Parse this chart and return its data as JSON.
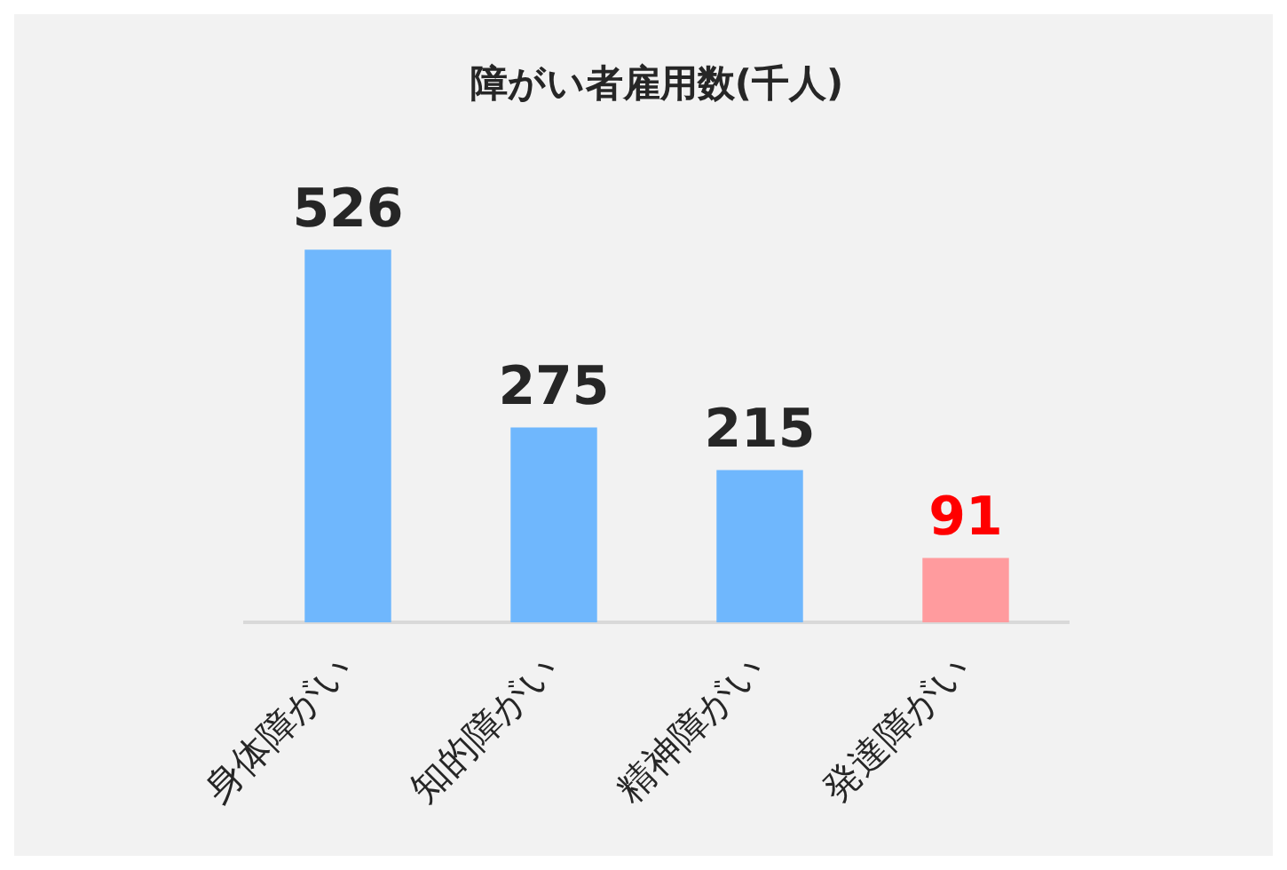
{
  "chart_data": {
    "type": "bar",
    "title": "障がい者雇用数(千人)",
    "categories": [
      "身体障がい",
      "知的障がい",
      "精神障がい",
      "発達障がい"
    ],
    "values": [
      526,
      275,
      215,
      91
    ],
    "colors": [
      "#6fb7fd",
      "#6fb7fd",
      "#6fb7fd",
      "#ff9b9e"
    ],
    "data_labels": true,
    "grid": false,
    "legend": false
  }
}
